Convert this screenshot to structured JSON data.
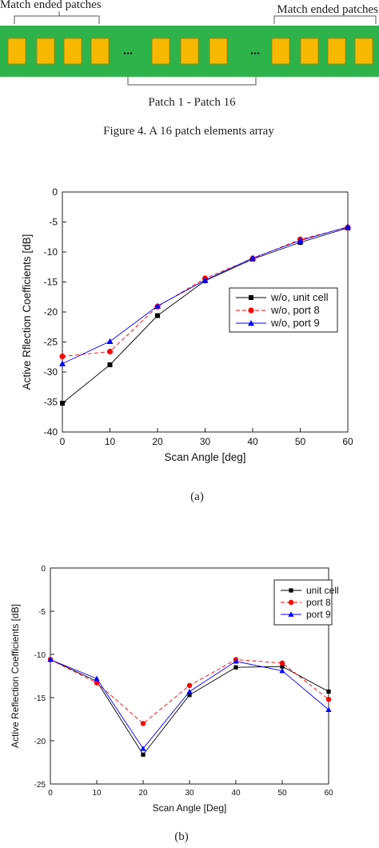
{
  "figure4": {
    "label_left": "Match ended patches",
    "label_right": "Match ended patches",
    "label_bottom": "Patch 1 - Patch 16",
    "caption": "Figure 4. A 16 patch elements array",
    "ellipsis": "...",
    "colors": {
      "board": "#2eb34a",
      "patch": "#f6b800",
      "patch_border": "#a57a00"
    }
  },
  "chart_data": [
    {
      "type": "line",
      "caption": "(a)",
      "xlabel": "Scan Angle [deg]",
      "ylabel": "Active Rflection Coefficients [dB]",
      "xlim": [
        0,
        60
      ],
      "ylim": [
        -40,
        0
      ],
      "xticks": [
        0,
        10,
        20,
        30,
        40,
        50,
        60
      ],
      "yticks": [
        0,
        -5,
        -10,
        -15,
        -20,
        -25,
        -30,
        -35,
        -40
      ],
      "legend_position": "right",
      "x": [
        0,
        10,
        20,
        30,
        40,
        50,
        60
      ],
      "series": [
        {
          "name": "w/o, unit cell",
          "values": [
            -35.2,
            -28.8,
            -20.6,
            -14.8,
            -11.2,
            -8.4,
            -6.0
          ],
          "color": "#000000",
          "marker": "square",
          "dash": "solid"
        },
        {
          "name": "w/o, port 8",
          "values": [
            -27.4,
            -26.6,
            -19.1,
            -14.4,
            -11.1,
            -7.9,
            -5.9
          ],
          "color": "#ff0000",
          "marker": "circle",
          "dash": "dashed"
        },
        {
          "name": "w/o, port 9",
          "values": [
            -28.6,
            -24.9,
            -19.0,
            -14.7,
            -11.0,
            -8.1,
            -5.8
          ],
          "color": "#0000ff",
          "marker": "triangle",
          "dash": "solid"
        }
      ]
    },
    {
      "type": "line",
      "caption": "(b)",
      "xlabel": "Scan Angle [Deg]",
      "ylabel": "Active Reflection Coefficients [dB]",
      "xlim": [
        0,
        60
      ],
      "ylim": [
        -25,
        0
      ],
      "xticks": [
        0,
        10,
        20,
        30,
        40,
        50,
        60
      ],
      "yticks": [
        0,
        -5,
        -10,
        -15,
        -20,
        -25
      ],
      "legend_position": "top-right",
      "x": [
        0,
        10,
        20,
        30,
        40,
        50,
        60
      ],
      "series": [
        {
          "name": "unit cell",
          "values": [
            -10.6,
            -13.1,
            -21.6,
            -14.7,
            -11.5,
            -11.4,
            -14.3
          ],
          "color": "#000000",
          "marker": "square",
          "dash": "solid"
        },
        {
          "name": "port 8",
          "values": [
            -10.6,
            -13.3,
            -18.0,
            -13.6,
            -10.6,
            -11.0,
            -15.2
          ],
          "color": "#ff0000",
          "marker": "circle",
          "dash": "dashed"
        },
        {
          "name": "port 9",
          "values": [
            -10.6,
            -12.8,
            -20.9,
            -14.3,
            -10.8,
            -11.9,
            -16.4
          ],
          "color": "#0000ff",
          "marker": "triangle",
          "dash": "solid"
        }
      ]
    }
  ]
}
